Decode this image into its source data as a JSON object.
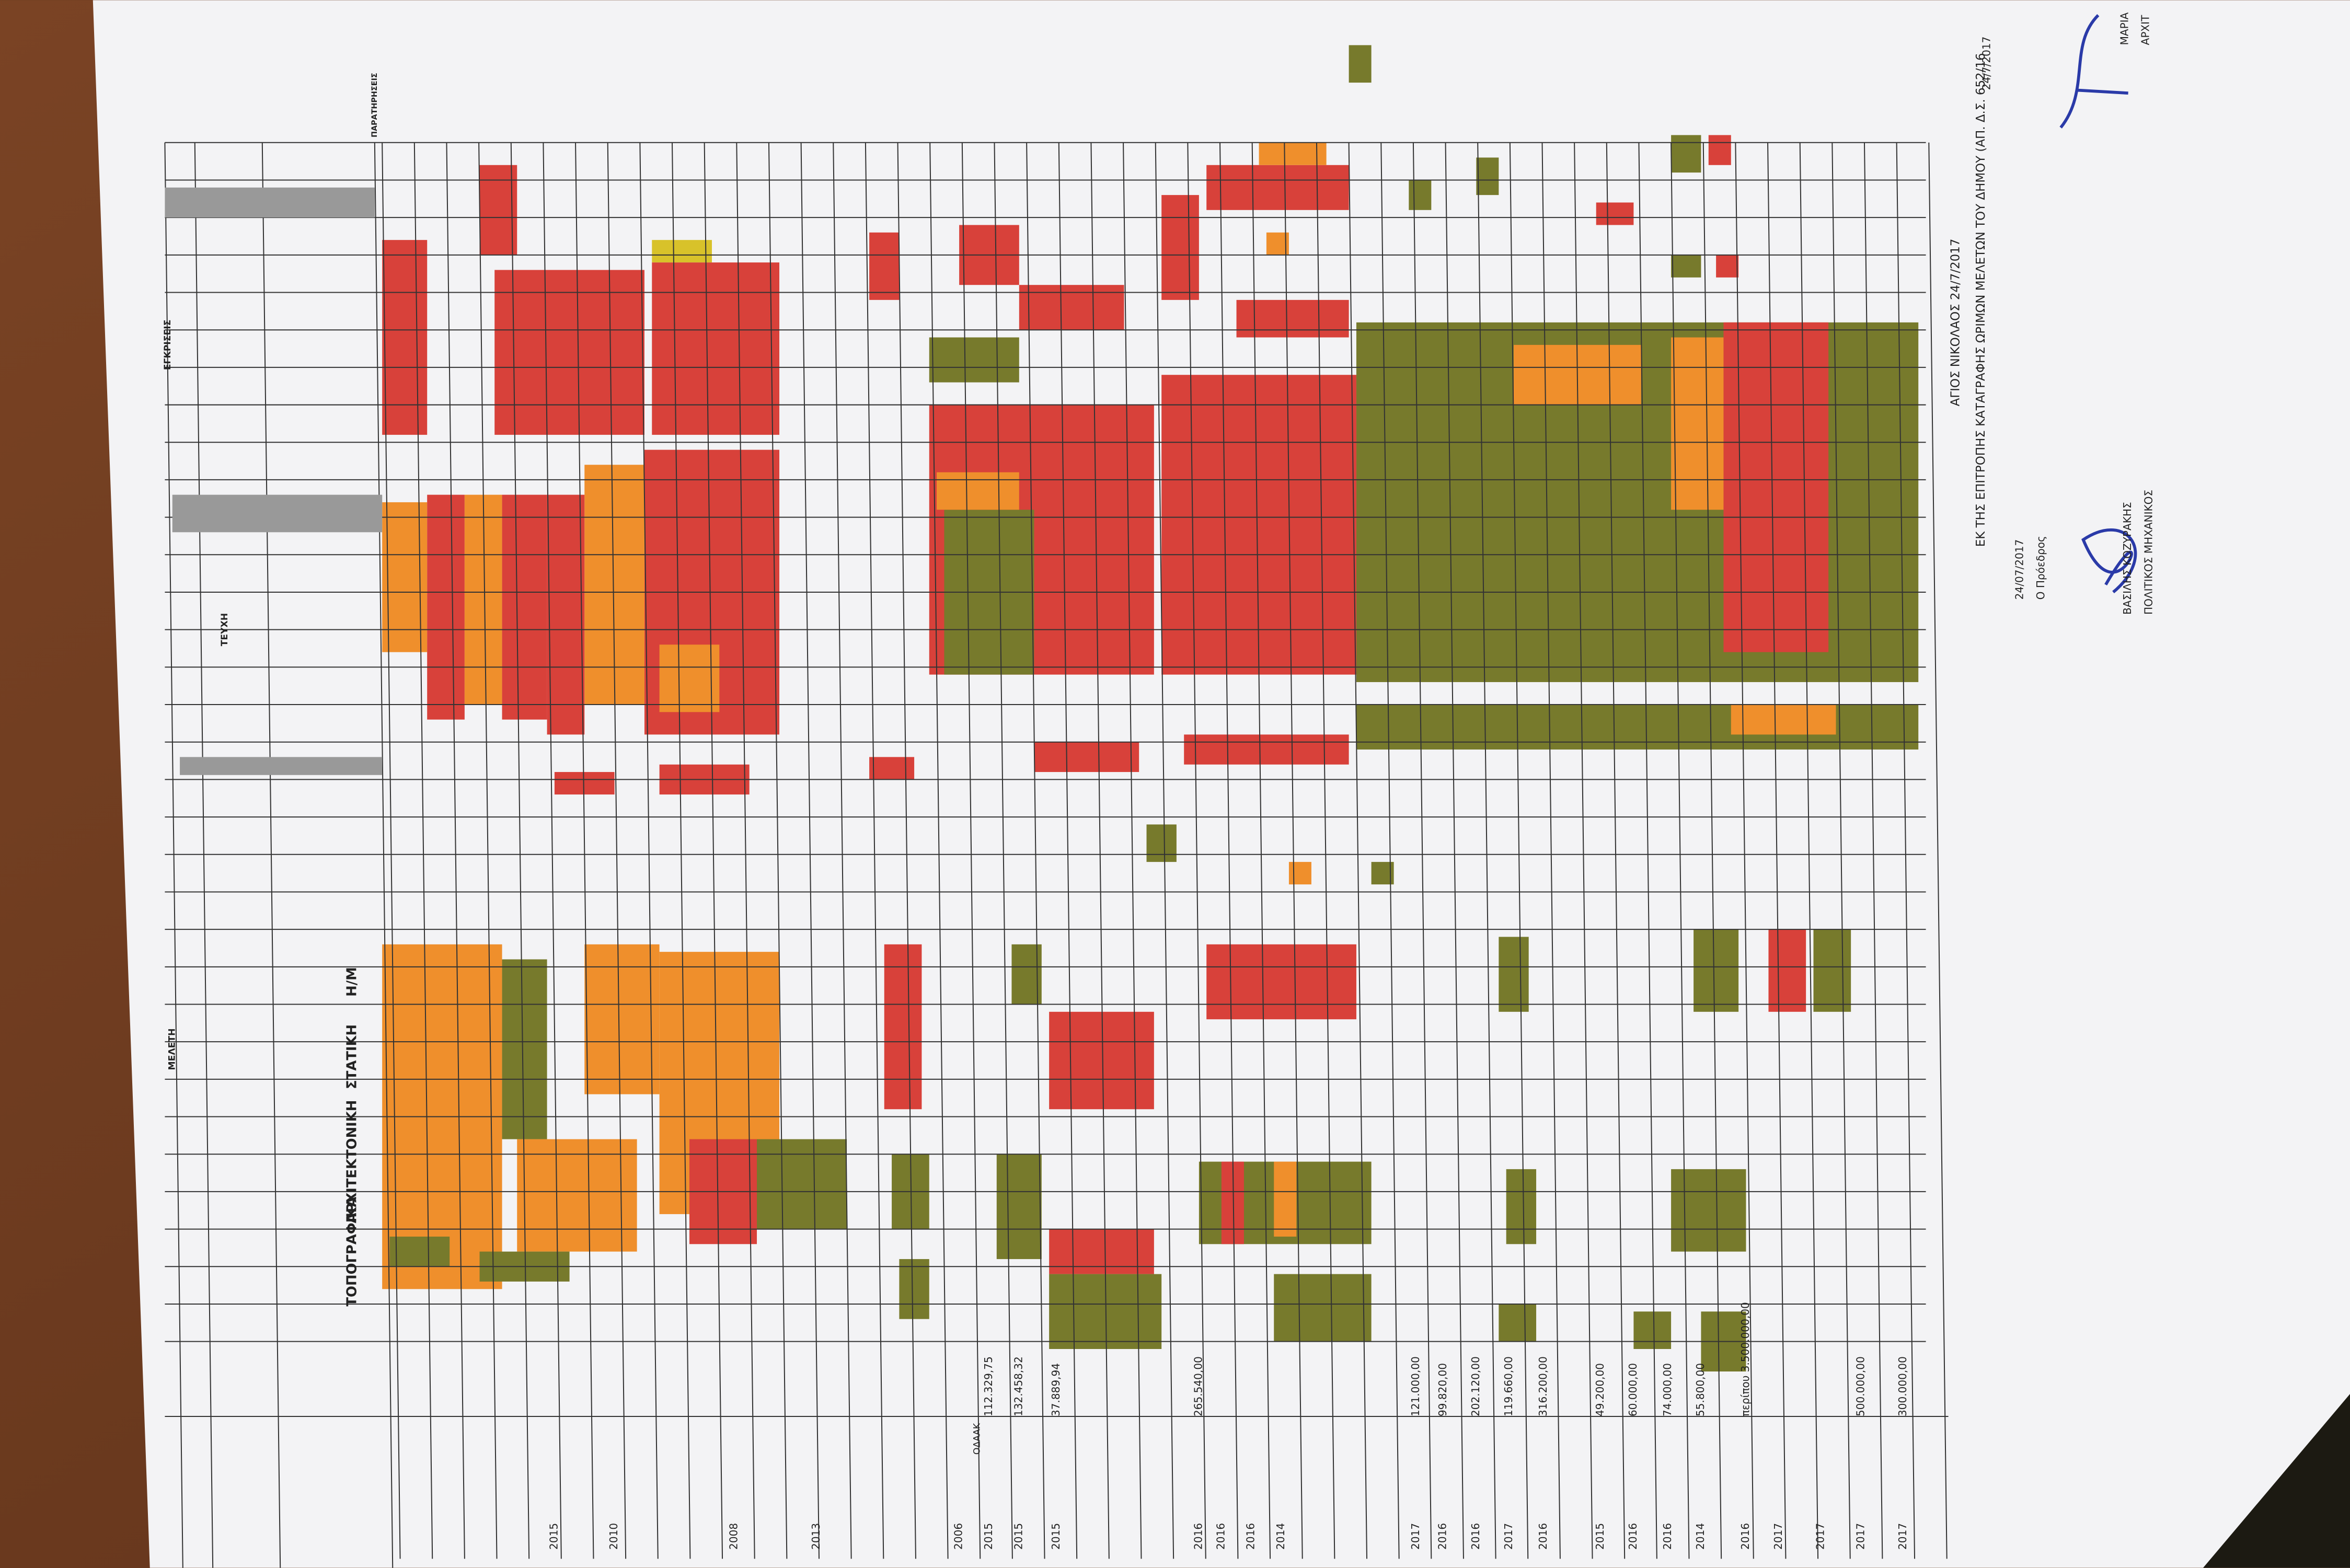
{
  "header": {
    "study_group": "ΜΕΛΕΤΗ",
    "documents_group": "ΤΕΥΧΗ",
    "approvals_group": "ΕΓΚΡΙΣΕΙΣ",
    "remarks": "ΠΑΡΑΤΗΡΗΣΕΙΣ",
    "topographic": "ΤΟΠΟΓΡΑΦΙΚΑ",
    "architectural": "ΑΡΧΙΤΕΚΤΟΝΙΚΗ",
    "structural": "ΣΤΑΤΙΚΗ",
    "mechanical": "Η/Μ"
  },
  "rows": [
    {
      "year": "2015"
    },
    {
      "year": "2010"
    },
    {
      "year": "2008"
    },
    {
      "year": "2013"
    },
    {
      "year": "2006",
      "note": "ΟΔΑΑΚ"
    },
    {
      "year": "2015",
      "amount": "112.329,75"
    },
    {
      "year": "2015",
      "amount": "132.458,32"
    },
    {
      "year": "2015",
      "amount": "37.889,94"
    },
    {
      "year": "2016",
      "amount": "265.540,00"
    },
    {
      "year": "2016"
    },
    {
      "year": "2016"
    },
    {
      "year": "2014"
    },
    {
      "year": "2017",
      "amount": "121.000,00"
    },
    {
      "year": "2016",
      "amount": "99.820,00"
    },
    {
      "year": "2016",
      "amount": "202.120,00"
    },
    {
      "year": "2017",
      "amount": "119.660,00"
    },
    {
      "year": "2016",
      "amount": "316.200,00"
    },
    {
      "year": "2015",
      "amount": "49.200,00"
    },
    {
      "year": "2016",
      "amount": "60.000,00"
    },
    {
      "year": "2016",
      "amount": "74.000,00"
    },
    {
      "year": "2014",
      "amount": "55.800,00"
    },
    {
      "year": "2016",
      "amount": "περίπου 3.500.000,00"
    },
    {
      "year": "2017"
    },
    {
      "year": "2017"
    },
    {
      "year": "2017",
      "amount": "500.000,00"
    },
    {
      "year": "2017",
      "amount": "300.000,00"
    }
  ],
  "footer": {
    "place_date": "ΑΓΙΟΣ ΝΙΚΟΛΑΟΣ  24/7/2017",
    "committee": "ΕΚ ΤΗΣ ΕΠΙΤΡΟΠΗΣ ΚΑΤΑΓΡΑΦΗΣ ΩΡΙΜΩΝ ΜΕΛΕΤΩΝ ΤΟΥ ΔΗΜΟΥ (ΑΠ. Δ.Σ. 652/16",
    "sign_date": "24/07/2017",
    "chair_role": "Ο Πρόεδρος",
    "chair_name": "ΒΑΣΙΛΗΣ ΚΟΖΥΡΑΚΗΣ",
    "chair_title": "ΠΟΛΙΤΙΚΟΣ ΜΗΧΑΝΙΚΟΣ",
    "second_date": "24/7/2017",
    "second_name": "ΜΑΡΙΑ",
    "second_title": "ΑΡΧΙΤ"
  }
}
